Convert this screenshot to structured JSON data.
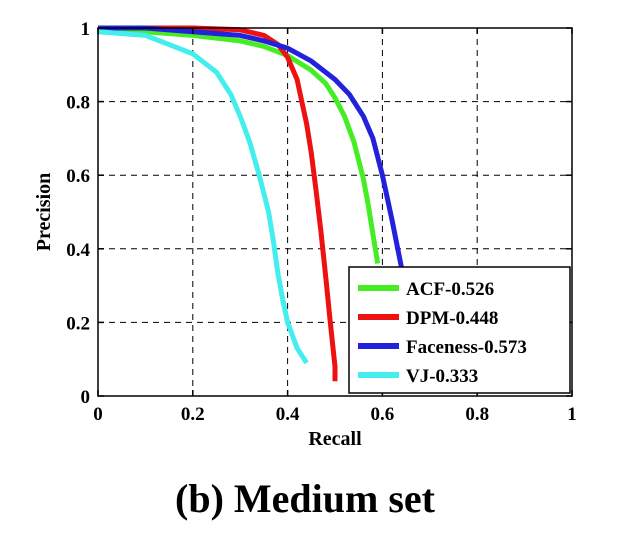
{
  "caption": "(b) Medium set",
  "colors": {
    "ACF": "#44ee22",
    "DPM": "#ee1111",
    "Faceness": "#2222dd",
    "VJ": "#44eeee"
  },
  "chart_data": {
    "type": "line",
    "title": "",
    "xlabel": "Recall",
    "ylabel": "Precision",
    "xlim": [
      0,
      1
    ],
    "ylim": [
      0,
      1
    ],
    "xticks": [
      "0",
      "0.2",
      "0.4",
      "0.6",
      "0.8",
      "1"
    ],
    "yticks": [
      "0",
      "0.2",
      "0.4",
      "0.6",
      "0.8",
      "1"
    ],
    "grid": true,
    "legend_position": "bottom-right",
    "series": [
      {
        "name": "ACF-0.526",
        "color": "#44ee22",
        "x": [
          0.0,
          0.1,
          0.2,
          0.3,
          0.35,
          0.4,
          0.45,
          0.48,
          0.5,
          0.52,
          0.54,
          0.56,
          0.57,
          0.58,
          0.59
        ],
        "y": [
          0.995,
          0.99,
          0.98,
          0.965,
          0.95,
          0.925,
          0.885,
          0.85,
          0.81,
          0.76,
          0.69,
          0.59,
          0.52,
          0.44,
          0.36
        ]
      },
      {
        "name": "DPM-0.448",
        "color": "#ee1111",
        "x": [
          0.0,
          0.1,
          0.2,
          0.3,
          0.35,
          0.38,
          0.4,
          0.42,
          0.43,
          0.44,
          0.45,
          0.46,
          0.47,
          0.48,
          0.49,
          0.5,
          0.5
        ],
        "y": [
          1.0,
          1.0,
          1.0,
          0.995,
          0.98,
          0.955,
          0.92,
          0.86,
          0.8,
          0.74,
          0.66,
          0.56,
          0.45,
          0.33,
          0.2,
          0.08,
          0.04
        ]
      },
      {
        "name": "Faceness-0.573",
        "color": "#2222dd",
        "x": [
          0.0,
          0.1,
          0.2,
          0.3,
          0.35,
          0.4,
          0.45,
          0.5,
          0.53,
          0.56,
          0.58,
          0.6,
          0.62,
          0.64
        ],
        "y": [
          1.0,
          1.0,
          0.99,
          0.98,
          0.965,
          0.945,
          0.91,
          0.86,
          0.82,
          0.76,
          0.7,
          0.6,
          0.48,
          0.35
        ]
      },
      {
        "name": "VJ-0.333",
        "color": "#44eeee",
        "x": [
          0.0,
          0.1,
          0.15,
          0.2,
          0.25,
          0.28,
          0.3,
          0.32,
          0.34,
          0.36,
          0.37,
          0.38,
          0.39,
          0.4,
          0.42,
          0.44
        ],
        "y": [
          0.99,
          0.98,
          0.955,
          0.93,
          0.88,
          0.82,
          0.76,
          0.69,
          0.6,
          0.5,
          0.42,
          0.33,
          0.26,
          0.2,
          0.13,
          0.09
        ]
      }
    ]
  }
}
